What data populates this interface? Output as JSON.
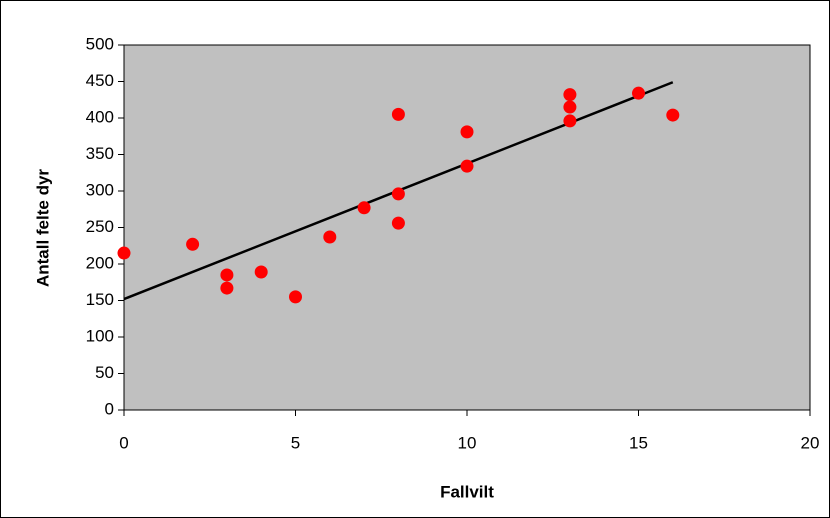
{
  "chart_data": {
    "type": "scatter",
    "xlabel": "Fallvilt",
    "ylabel": "Antall felte dyr",
    "x": [
      0,
      2,
      3,
      3,
      4,
      5,
      6,
      7,
      8,
      8,
      8,
      10,
      10,
      13,
      13,
      13,
      15,
      16
    ],
    "values": [
      215,
      227,
      185,
      167,
      189,
      155,
      237,
      277,
      405,
      296,
      256,
      381,
      334,
      432,
      415,
      396,
      434,
      404
    ],
    "color": "#ff0000",
    "trendline": {
      "x": [
        0,
        16
      ],
      "values": [
        152,
        449
      ],
      "color": "#000000"
    },
    "xlim": [
      0,
      20
    ],
    "xticks": [
      0,
      5,
      10,
      15,
      20
    ],
    "ylim": [
      0,
      500
    ],
    "yticks": [
      0,
      50,
      100,
      150,
      200,
      250,
      300,
      350,
      400,
      450,
      500
    ],
    "grid": false,
    "plot_background": "#c0c0c0"
  }
}
